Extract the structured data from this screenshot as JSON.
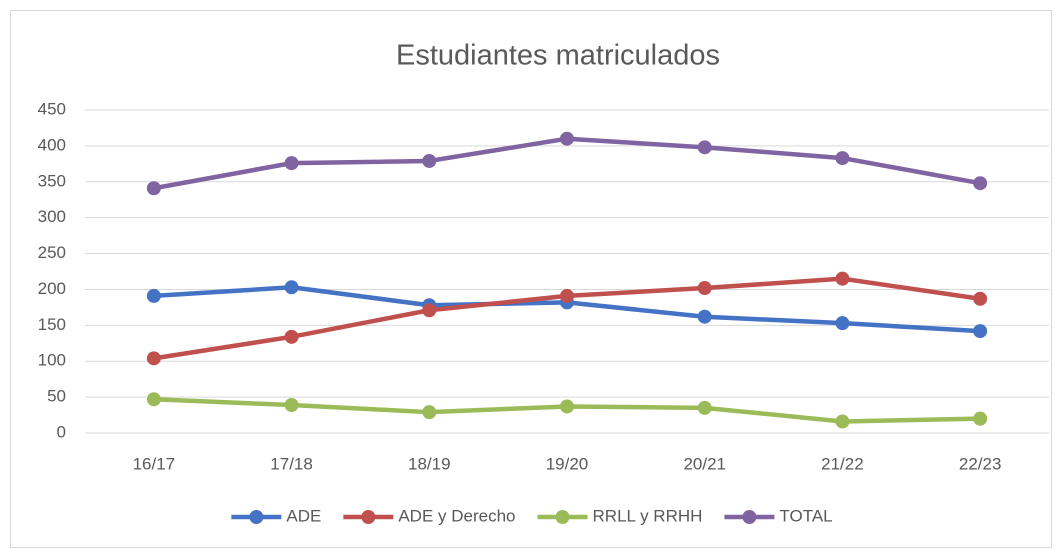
{
  "chart_data": {
    "type": "line",
    "title": "Estudiantes matriculados",
    "categories": [
      "16/17",
      "17/18",
      "18/19",
      "19/20",
      "20/21",
      "21/22",
      "22/23"
    ],
    "series": [
      {
        "name": "ADE",
        "color": "#4472c4",
        "values": [
          191,
          203,
          178,
          182,
          162,
          153,
          142
        ]
      },
      {
        "name": "ADE y Derecho",
        "color": "#c0504d",
        "values": [
          104,
          134,
          171,
          191,
          202,
          215,
          187
        ]
      },
      {
        "name": "RRLL y RRHH",
        "color": "#9bbb59",
        "values": [
          47,
          39,
          29,
          37,
          35,
          16,
          20
        ]
      },
      {
        "name": "TOTAL",
        "color": "#8064a2",
        "values": [
          341,
          376,
          379,
          410,
          398,
          383,
          348
        ]
      }
    ],
    "ylim": [
      0,
      450
    ],
    "yticks": [
      0,
      50,
      100,
      150,
      200,
      250,
      300,
      350,
      400,
      450
    ],
    "grid": true,
    "legend": "bottom"
  }
}
